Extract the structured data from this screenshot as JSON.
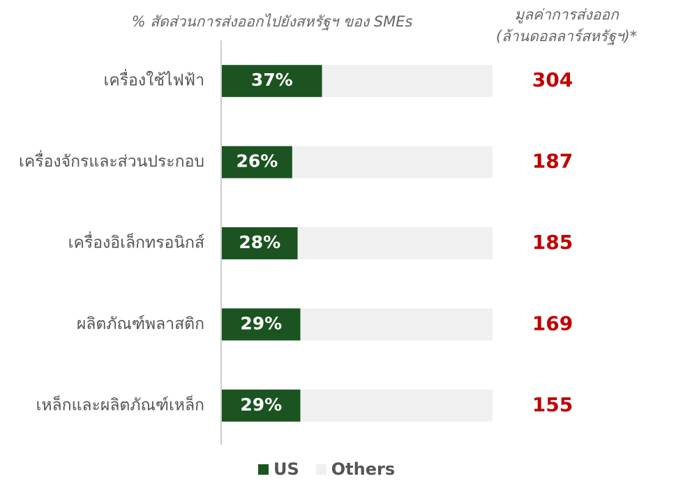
{
  "chart_data": {
    "type": "bar",
    "orientation": "horizontal",
    "stacked": true,
    "title": "% สัดส่วนการส่งออกไปยังสหรัฐฯ ของ SMEs",
    "value_column_title": [
      "มูลค่าการส่งออก",
      "(ล้านดอลลาร์สหรัฐฯ)*"
    ],
    "categories": [
      "เครื่องใช้ไฟฟ้า",
      "เครื่องจักรและส่วนประกอบ",
      "เครื่องอิเล็กทรอนิกส์",
      "ผลิตภัณฑ์พลาสติก",
      "เหล็กและผลิตภัณฑ์เหล็ก"
    ],
    "xlim": [
      0,
      100
    ],
    "series": [
      {
        "name": "US",
        "color": "#1b5321",
        "values": [
          37,
          26,
          28,
          29,
          29
        ],
        "value_labels": [
          "37%",
          "26%",
          "28%",
          "29%",
          "29%"
        ]
      },
      {
        "name": "Others",
        "color": "#f0f0f0",
        "values": [
          63,
          74,
          72,
          71,
          71
        ]
      }
    ],
    "export_values": [
      304,
      187,
      185,
      169,
      155
    ],
    "export_color": "#c00000"
  }
}
